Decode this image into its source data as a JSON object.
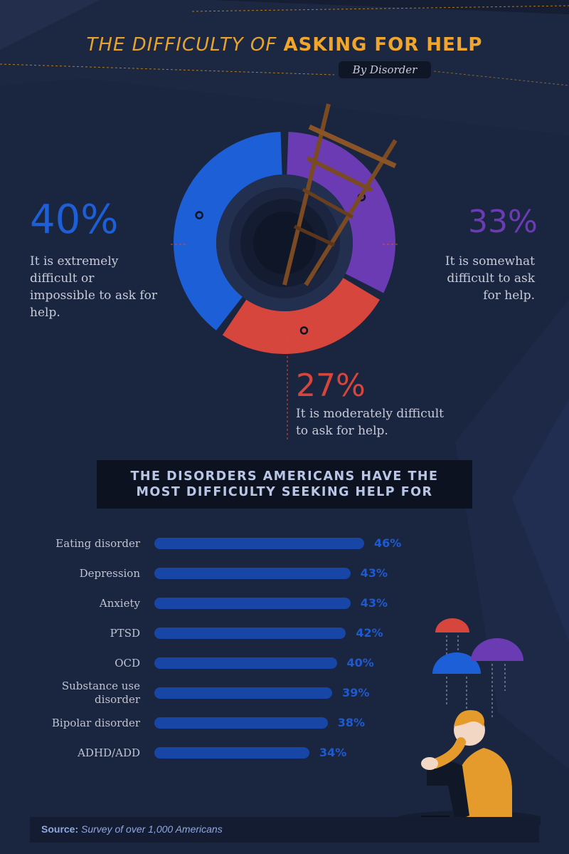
{
  "header": {
    "title_part1": "THE DIFFICULTY OF",
    "title_part2": "ASKING FOR HELP",
    "subtitle": "By Disorder"
  },
  "donut": {
    "segments": [
      {
        "pct_label": "40%",
        "value": 40,
        "color": "#1d5fd6",
        "description_lines": [
          "It is extremely",
          "difficult or",
          "impossible to ask for",
          "help."
        ]
      },
      {
        "pct_label": "33%",
        "value": 33,
        "color": "#6b3bb3",
        "description_lines": [
          "It is somewhat",
          "difficult to ask",
          "for help."
        ]
      },
      {
        "pct_label": "27%",
        "value": 27,
        "color": "#d6463c",
        "description_lines": [
          "It is moderately difficult",
          "to ask for help."
        ]
      }
    ]
  },
  "banner": {
    "line1": "THE DISORDERS AMERICANS HAVE THE",
    "line2": "MOST DIFFICULTY SEEKING HELP FOR"
  },
  "chart_data": [
    {
      "type": "pie",
      "categories": [
        "It is extremely difficult or impossible to ask for help.",
        "It is somewhat difficult to ask for help.",
        "It is moderately difficult to ask for help."
      ],
      "values": [
        40,
        33,
        27
      ],
      "title": "THE DIFFICULTY OF ASKING FOR HELP",
      "subtitle": "By Disorder"
    },
    {
      "type": "bar",
      "title": "THE DISORDERS AMERICANS HAVE THE MOST DIFFICULTY SEEKING HELP FOR",
      "categories": [
        "Eating disorder",
        "Depression",
        "Anxiety",
        "PTSD",
        "OCD",
        "Substance use disorder",
        "Bipolar disorder",
        "ADHD/ADD"
      ],
      "category_lines": [
        [
          "Eating disorder"
        ],
        [
          "Depression"
        ],
        [
          "Anxiety"
        ],
        [
          "PTSD"
        ],
        [
          "OCD"
        ],
        [
          "Substance use",
          "disorder"
        ],
        [
          "Bipolar disorder"
        ],
        [
          "ADHD/ADD"
        ]
      ],
      "values": [
        46,
        43,
        43,
        42,
        40,
        39,
        38,
        34
      ],
      "value_labels": [
        "46%",
        "43%",
        "43%",
        "42%",
        "40%",
        "39%",
        "38%",
        "34%"
      ]
    }
  ],
  "footer": {
    "source_label": "Source:",
    "source_text": "Survey of over 1,000 Americans"
  },
  "colors": {
    "background": "#1a2540",
    "title_accent": "#f0a62c",
    "bar": "#1746a6",
    "bar_value": "#1e5ad0"
  },
  "icons": [
    "ladder-illustration",
    "rain-cloud-icon",
    "sad-person-illustration"
  ]
}
